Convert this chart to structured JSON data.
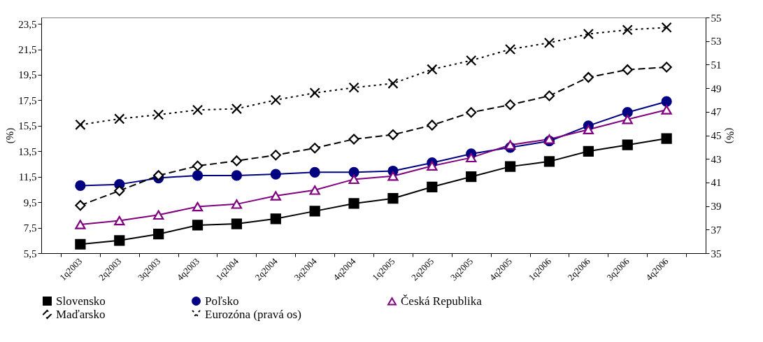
{
  "chart_data": {
    "type": "line",
    "ylabel": "(%)",
    "y2label": "(%)",
    "categories": [
      "1q2003",
      "2q2003",
      "3q2003",
      "4q2003",
      "1q2004",
      "2q2004",
      "3q2004",
      "4q2004",
      "1q2005",
      "2q2005",
      "3q2005",
      "4q2005",
      "1q2006",
      "2q2006",
      "3q2006",
      "4q2006"
    ],
    "series": [
      {
        "name": "Slovensko",
        "color": "#000000",
        "marker": "square",
        "line_style": "solid",
        "values": [
          6.2,
          6.5,
          7.0,
          7.7,
          7.8,
          8.2,
          8.8,
          9.4,
          9.8,
          10.7,
          11.5,
          12.3,
          12.7,
          13.5,
          14.0,
          14.5
        ]
      },
      {
        "name": "Poľsko",
        "color": "#000080",
        "marker": "circle",
        "line_style": "solid",
        "values": [
          10.8,
          10.9,
          11.4,
          11.6,
          11.6,
          11.7,
          11.85,
          11.85,
          11.95,
          12.6,
          13.3,
          13.8,
          14.3,
          15.5,
          16.55,
          17.4
        ]
      },
      {
        "name": "Česká Republika",
        "color": "#800080",
        "marker": "triangle",
        "line_style": "solid",
        "values": [
          7.75,
          8.05,
          8.5,
          9.15,
          9.35,
          10.0,
          10.45,
          11.3,
          11.55,
          12.35,
          13.0,
          14.0,
          14.45,
          15.2,
          16.0,
          16.75
        ]
      },
      {
        "name": "Maďarsko",
        "color": "#000000",
        "marker": "diamond",
        "line_style": "dashed",
        "values": [
          9.25,
          10.4,
          11.6,
          12.35,
          12.75,
          13.2,
          13.75,
          14.45,
          14.8,
          15.55,
          16.55,
          17.15,
          17.85,
          19.3,
          19.9,
          20.1
        ]
      },
      {
        "name": "Eurozóna (pravá os)",
        "color": "#000000",
        "marker": "cross",
        "line_style": "dotted",
        "axis": "y2",
        "values": [
          45.9,
          46.4,
          46.75,
          47.15,
          47.25,
          48.0,
          48.6,
          49.05,
          49.4,
          50.6,
          51.35,
          52.3,
          52.85,
          53.6,
          53.95,
          54.15
        ]
      }
    ],
    "ylim": [
      5.5,
      24
    ],
    "yticks": [
      {
        "value": 5.5,
        "label": "5,5"
      },
      {
        "value": 7.5,
        "label": "7,5"
      },
      {
        "value": 9.5,
        "label": "9,5"
      },
      {
        "value": 11.5,
        "label": "11,5"
      },
      {
        "value": 13.5,
        "label": "13,5"
      },
      {
        "value": 15.5,
        "label": "15,5"
      },
      {
        "value": 17.5,
        "label": "17,5"
      },
      {
        "value": 19.5,
        "label": "19,5"
      },
      {
        "value": 21.5,
        "label": "21,5"
      },
      {
        "value": 23.5,
        "label": "23,5"
      }
    ],
    "y2lim": [
      35,
      55
    ],
    "y2ticks": [
      35,
      37,
      39,
      41,
      43,
      45,
      47,
      49,
      51,
      53,
      55
    ],
    "grid": false,
    "legend": "bottom"
  }
}
